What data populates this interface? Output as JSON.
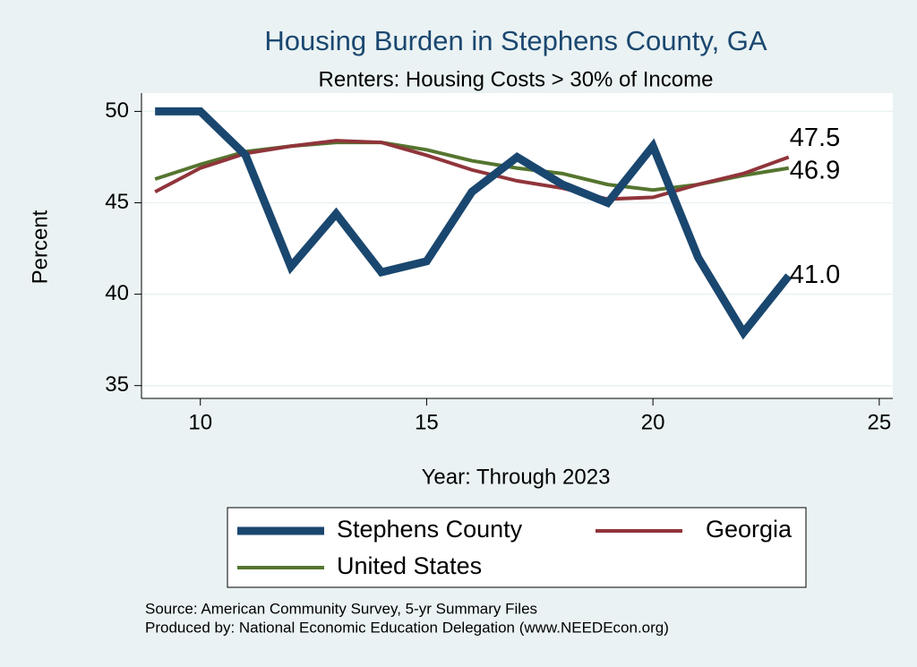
{
  "chart_data": {
    "type": "line",
    "title": "Housing Burden in Stephens County, GA",
    "subtitle": "Renters: Housing Costs > 30% of Income",
    "x_label": "Year: Through 2023",
    "y_label": "Percent",
    "x": [
      9,
      10,
      11,
      12,
      13,
      14,
      15,
      16,
      17,
      18,
      19,
      20,
      21,
      22,
      23
    ],
    "series": [
      {
        "name": "Stephens County",
        "color": "#1a476f",
        "values": [
          50.0,
          50.0,
          47.6,
          41.5,
          44.4,
          41.2,
          41.8,
          45.6,
          47.5,
          46.0,
          45.0,
          48.1,
          42.0,
          37.9,
          41.0
        ],
        "value_labels": [
          null,
          null,
          null,
          null,
          null,
          null,
          null,
          null,
          null,
          null,
          null,
          null,
          null,
          null,
          "41.0"
        ]
      },
      {
        "name": "Georgia",
        "color": "#90353b",
        "values": [
          45.6,
          46.9,
          47.7,
          48.1,
          48.4,
          48.3,
          47.6,
          46.8,
          46.2,
          45.8,
          45.2,
          45.3,
          46.0,
          46.6,
          47.5
        ],
        "value_labels": [
          null,
          null,
          null,
          null,
          null,
          null,
          null,
          null,
          null,
          null,
          null,
          null,
          null,
          null,
          "47.5"
        ]
      },
      {
        "name": "United States",
        "color": "#55752f",
        "values": [
          46.3,
          47.1,
          47.8,
          48.1,
          48.3,
          48.3,
          47.9,
          47.3,
          46.9,
          46.6,
          46.0,
          45.7,
          46.0,
          46.5,
          46.9
        ],
        "value_labels": [
          null,
          null,
          null,
          null,
          null,
          null,
          null,
          null,
          null,
          null,
          null,
          null,
          null,
          null,
          "46.9"
        ]
      }
    ],
    "xlim": [
      8.7,
      25.3
    ],
    "xticks": [
      10,
      15,
      20,
      25
    ],
    "ylim": [
      34.3,
      51.0
    ],
    "yticks": [
      35,
      40,
      45,
      50
    ],
    "grid": true,
    "legend_position": "bottom",
    "notes": [
      "Source: American Community Survey, 5-yr Summary Files",
      "Produced by: National Economic Education Delegation (www.NEEDEcon.org)"
    ]
  }
}
